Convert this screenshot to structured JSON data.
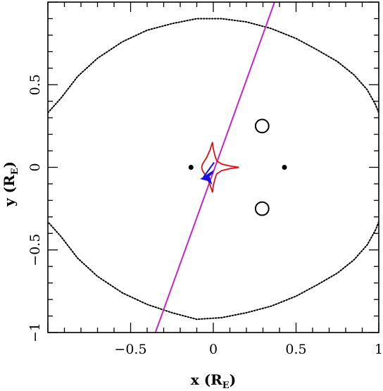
{
  "chart_data": {
    "type": "scatter",
    "title": "",
    "xlabel": {
      "main": "x (R",
      "sub": "E",
      "close": ")"
    },
    "ylabel": {
      "main": "y (R",
      "sub": "E",
      "close": ")"
    },
    "xlim": [
      -1.0,
      1.0
    ],
    "ylim": [
      -1.0,
      1.0
    ],
    "x_ticks": [
      {
        "value": -0.5,
        "label": "−0.5"
      },
      {
        "value": 0,
        "label": "0"
      },
      {
        "value": 0.5,
        "label": "0.5"
      },
      {
        "value": 1,
        "label": "1"
      }
    ],
    "y_ticks": [
      {
        "value": -1,
        "label": "−1"
      },
      {
        "value": -0.5,
        "label": "−0.5"
      },
      {
        "value": 0,
        "label": "0"
      },
      {
        "value": 0.5,
        "label": "0.5"
      }
    ],
    "grid": false,
    "lens_masses": [
      [
        -0.135,
        0.0
      ],
      [
        0.43,
        0.0
      ]
    ],
    "planetary_caustics": [
      {
        "center": [
          0.295,
          0.25
        ],
        "radius": 0.04
      },
      {
        "center": [
          0.295,
          -0.25
        ],
        "radius": 0.04
      }
    ],
    "critical_curve": [
      [
        -1.0,
        0.33
      ],
      [
        -0.92,
        0.42
      ],
      [
        -0.82,
        0.55
      ],
      [
        -0.7,
        0.66
      ],
      [
        -0.55,
        0.76
      ],
      [
        -0.4,
        0.83
      ],
      [
        -0.25,
        0.87
      ],
      [
        -0.1,
        0.9
      ],
      [
        0.05,
        0.9
      ],
      [
        0.2,
        0.88
      ],
      [
        0.35,
        0.84
      ],
      [
        0.5,
        0.78
      ],
      [
        0.63,
        0.71
      ],
      [
        0.75,
        0.64
      ],
      [
        0.85,
        0.56
      ],
      [
        0.93,
        0.47
      ],
      [
        0.98,
        0.38
      ],
      [
        1.0,
        0.33
      ],
      null,
      [
        1.0,
        -0.33
      ],
      [
        0.98,
        -0.38
      ],
      [
        0.93,
        -0.47
      ],
      [
        0.85,
        -0.56
      ],
      [
        0.75,
        -0.64
      ],
      [
        0.63,
        -0.71
      ],
      [
        0.5,
        -0.78
      ],
      [
        0.35,
        -0.84
      ],
      [
        0.2,
        -0.88
      ],
      [
        0.05,
        -0.91
      ],
      [
        -0.1,
        -0.92
      ],
      [
        -0.25,
        -0.88
      ],
      [
        -0.4,
        -0.83
      ],
      [
        -0.55,
        -0.76
      ],
      [
        -0.7,
        -0.66
      ],
      [
        -0.82,
        -0.55
      ],
      [
        -0.92,
        -0.42
      ],
      [
        -1.0,
        -0.33
      ]
    ],
    "central_caustic": [
      [
        0.155,
        0.0
      ],
      [
        0.1,
        0.008
      ],
      [
        0.05,
        0.02
      ],
      [
        0.02,
        0.04
      ],
      [
        0.01,
        0.07
      ],
      [
        0.0,
        0.11
      ],
      [
        -0.005,
        0.152
      ],
      [
        -0.02,
        0.105
      ],
      [
        -0.04,
        0.06
      ],
      [
        -0.065,
        0.02
      ],
      [
        -0.07,
        0.0
      ],
      [
        -0.065,
        -0.02
      ],
      [
        -0.04,
        -0.06
      ],
      [
        -0.02,
        -0.105
      ],
      [
        -0.005,
        -0.152
      ],
      [
        0.0,
        -0.11
      ],
      [
        0.01,
        -0.07
      ],
      [
        0.02,
        -0.04
      ],
      [
        0.05,
        -0.02
      ],
      [
        0.1,
        -0.008
      ],
      [
        0.155,
        0.0
      ]
    ],
    "source_trajectory": [
      [
        -0.35,
        -1.0
      ],
      [
        0.37,
        1.0
      ]
    ],
    "source_track": [
      [
        -0.06,
        -0.06
      ],
      [
        0.005,
        0.03
      ]
    ],
    "source_marker": [
      [
        -0.075,
        -0.07
      ],
      [
        0.0,
        -0.02
      ],
      [
        -0.005,
        -0.035
      ],
      [
        -0.025,
        -0.055
      ],
      [
        -0.01,
        -0.1
      ],
      [
        -0.035,
        -0.08
      ],
      [
        -0.075,
        -0.07
      ]
    ],
    "colors": {
      "critical_curve": "#000000",
      "central_caustic": "#dd1111",
      "planetary_caustic": "#000000",
      "lens": "#000000",
      "trajectory": "#cc22cc",
      "source": "#1a11e0"
    }
  }
}
